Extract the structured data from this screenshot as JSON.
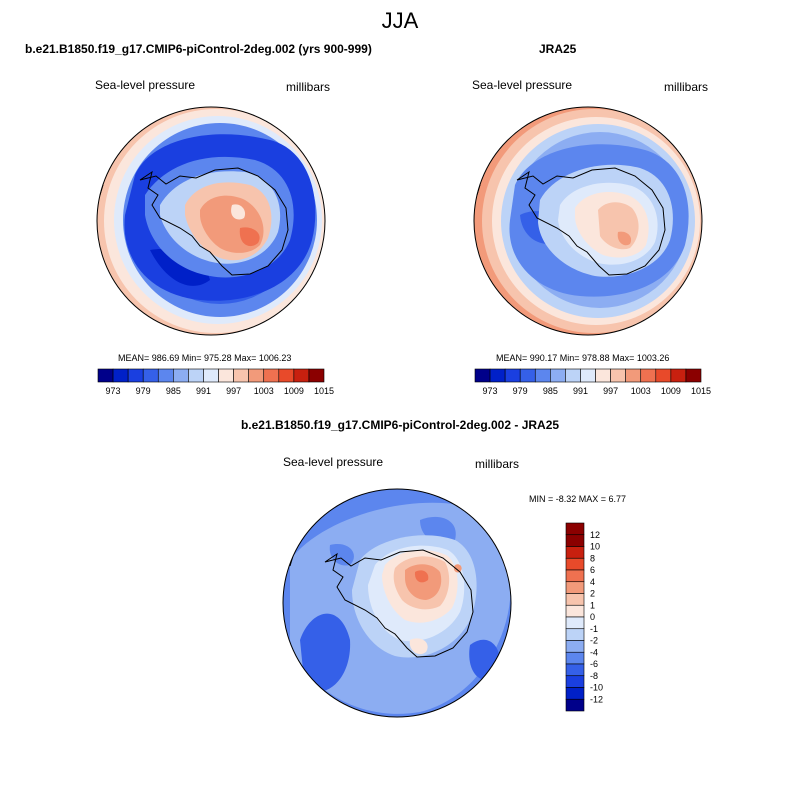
{
  "figure": {
    "title": "JJA",
    "footer_left": "b.e21.B1850.f19_g17.CMIP6-piControl-2deg.002 - JRA25"
  },
  "colors": {
    "abs_scale": [
      "#00008a",
      "#0020c8",
      "#1a3fe0",
      "#3560e8",
      "#5c86ee",
      "#8cadf2",
      "#bcd3f7",
      "#dfeafb",
      "#fbe6dc",
      "#f7c4ad",
      "#f29a7a",
      "#ef7150",
      "#e84a2a",
      "#c8200f",
      "#8b0000"
    ],
    "diff_scale": [
      "#00008a",
      "#0020c8",
      "#1a3fe0",
      "#3560e8",
      "#5c86ee",
      "#8cadf2",
      "#bcd3f7",
      "#dfeafb",
      "#fbe6dc",
      "#f7c4ad",
      "#f29a7a",
      "#ef7150",
      "#e84a2a",
      "#c8200f",
      "#8b0000"
    ]
  },
  "chart_data": [
    {
      "type": "heatmap",
      "title": "b.e21.B1850.f19_g17.CMIP6-piControl-2deg.002 (yrs 900-999)",
      "left_label": "Sea-level pressure",
      "right_label": "millibars",
      "stats_text": "MEAN= 986.69  Min= 975.28  Max= 1006.23",
      "mean": 986.69,
      "min": 975.28,
      "max": 1006.23,
      "colorbar_levels": [
        973,
        976,
        979,
        982,
        985,
        988,
        991,
        994,
        997,
        1000,
        1003,
        1006,
        1009,
        1012,
        1015
      ],
      "colorbar_labels": [
        "973",
        "979",
        "985",
        "991",
        "997",
        "1003",
        "1009",
        "1015"
      ],
      "units": "millibars"
    },
    {
      "type": "heatmap",
      "title": "JRA25",
      "left_label": "Sea-level pressure",
      "right_label": "millibars",
      "stats_text": "MEAN= 990.17  Min= 978.88  Max= 1003.26",
      "mean": 990.17,
      "min": 978.88,
      "max": 1003.26,
      "colorbar_levels": [
        973,
        976,
        979,
        982,
        985,
        988,
        991,
        994,
        997,
        1000,
        1003,
        1006,
        1009,
        1012,
        1015
      ],
      "colorbar_labels": [
        "973",
        "979",
        "985",
        "991",
        "997",
        "1003",
        "1009",
        "1015"
      ],
      "units": "millibars"
    },
    {
      "type": "heatmap",
      "title": "b.e21.B1850.f19_g17.CMIP6-piControl-2deg.002 - JRA25",
      "left_label": "Sea-level pressure",
      "right_label": "millibars",
      "stats_text": "MIN =  -8.32 MAX =   6.77",
      "min": -8.32,
      "max": 6.77,
      "colorbar_labels": [
        "12",
        "10",
        "8",
        "6",
        "4",
        "2",
        "1",
        "0",
        "-1",
        "-2",
        "-4",
        "-6",
        "-8",
        "-10",
        "-12"
      ],
      "units": "millibars"
    }
  ]
}
